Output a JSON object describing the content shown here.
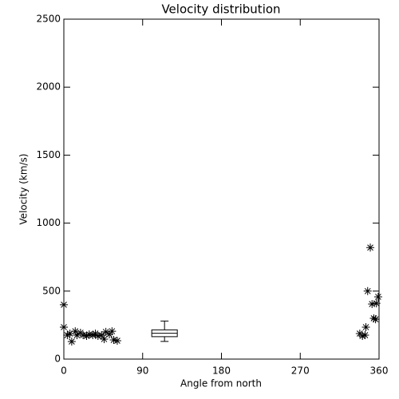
{
  "chart_data": {
    "type": "scatter",
    "title": "Velocity distribution",
    "x_label": "Angle from north",
    "y_label": "Velocity (km/s)",
    "x": [
      0,
      0,
      4,
      7,
      9,
      13,
      15,
      19,
      22,
      26,
      29,
      33,
      36,
      39,
      43,
      46,
      48,
      52,
      55,
      57,
      61,
      338,
      341,
      344,
      345,
      347,
      350,
      352,
      354,
      356,
      357,
      359
    ],
    "values": [
      400,
      235,
      176,
      188,
      129,
      205,
      176,
      194,
      176,
      170,
      182,
      176,
      188,
      170,
      176,
      147,
      200,
      182,
      205,
      141,
      135,
      188,
      170,
      176,
      235,
      500,
      820,
      405,
      300,
      293,
      410,
      458
    ],
    "color": "#000000",
    "box": {
      "x": 115,
      "whislo": 130,
      "q1": 165,
      "med": 190,
      "q3": 215,
      "whishi": 280
    },
    "xlim": [
      0,
      360
    ],
    "xticks": [
      0,
      90,
      180,
      270,
      360
    ],
    "ylim": [
      0,
      2500
    ],
    "yticks": [
      0,
      500,
      1000,
      1500,
      2000,
      2500
    ]
  }
}
